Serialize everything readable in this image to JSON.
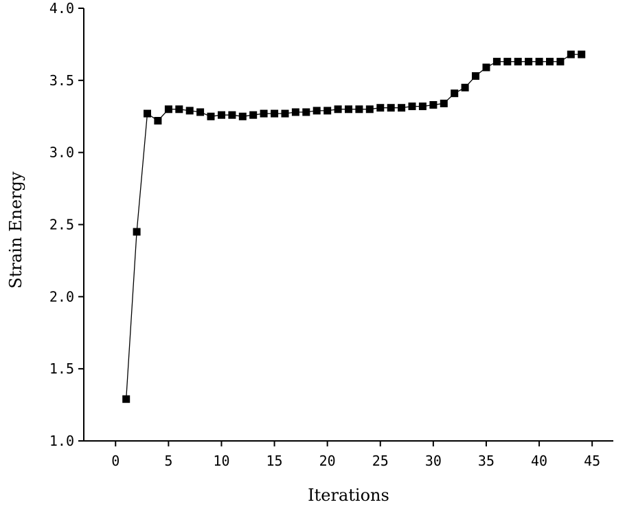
{
  "chart_data": {
    "type": "line",
    "title": "",
    "xlabel": "Iterations",
    "ylabel": "Strain Energy",
    "xlim": [
      -3,
      47
    ],
    "ylim": [
      1.0,
      4.0
    ],
    "x_ticks": [
      0,
      5,
      10,
      15,
      20,
      25,
      30,
      35,
      40,
      45
    ],
    "x_tick_labels": [
      "0",
      "5",
      "10",
      "15",
      "20",
      "25",
      "30",
      "35",
      "40",
      "45"
    ],
    "y_ticks": [
      1.0,
      1.5,
      2.0,
      2.5,
      3.0,
      3.5,
      4.0
    ],
    "y_tick_labels": [
      "1.0",
      "1.5",
      "2.0",
      "2.5",
      "3.0",
      "3.5",
      "4.0"
    ],
    "grid": false,
    "legend": "none",
    "marker": "square",
    "series": [
      {
        "color": "#000000",
        "x": [
          1,
          2,
          3,
          4,
          5,
          6,
          7,
          8,
          9,
          10,
          11,
          12,
          13,
          14,
          15,
          16,
          17,
          18,
          19,
          20,
          21,
          22,
          23,
          24,
          25,
          26,
          27,
          28,
          29,
          30,
          31,
          32,
          33,
          34,
          35,
          36,
          37,
          38,
          39,
          40,
          41,
          42,
          43,
          44
        ],
        "y": [
          1.29,
          2.45,
          3.27,
          3.22,
          3.3,
          3.3,
          3.29,
          3.28,
          3.25,
          3.26,
          3.26,
          3.25,
          3.26,
          3.27,
          3.27,
          3.27,
          3.28,
          3.28,
          3.29,
          3.29,
          3.3,
          3.3,
          3.3,
          3.3,
          3.31,
          3.31,
          3.31,
          3.32,
          3.32,
          3.33,
          3.34,
          3.41,
          3.45,
          3.53,
          3.59,
          3.63,
          3.63,
          3.63,
          3.63,
          3.63,
          3.63,
          3.63,
          3.68,
          3.68
        ]
      }
    ]
  }
}
